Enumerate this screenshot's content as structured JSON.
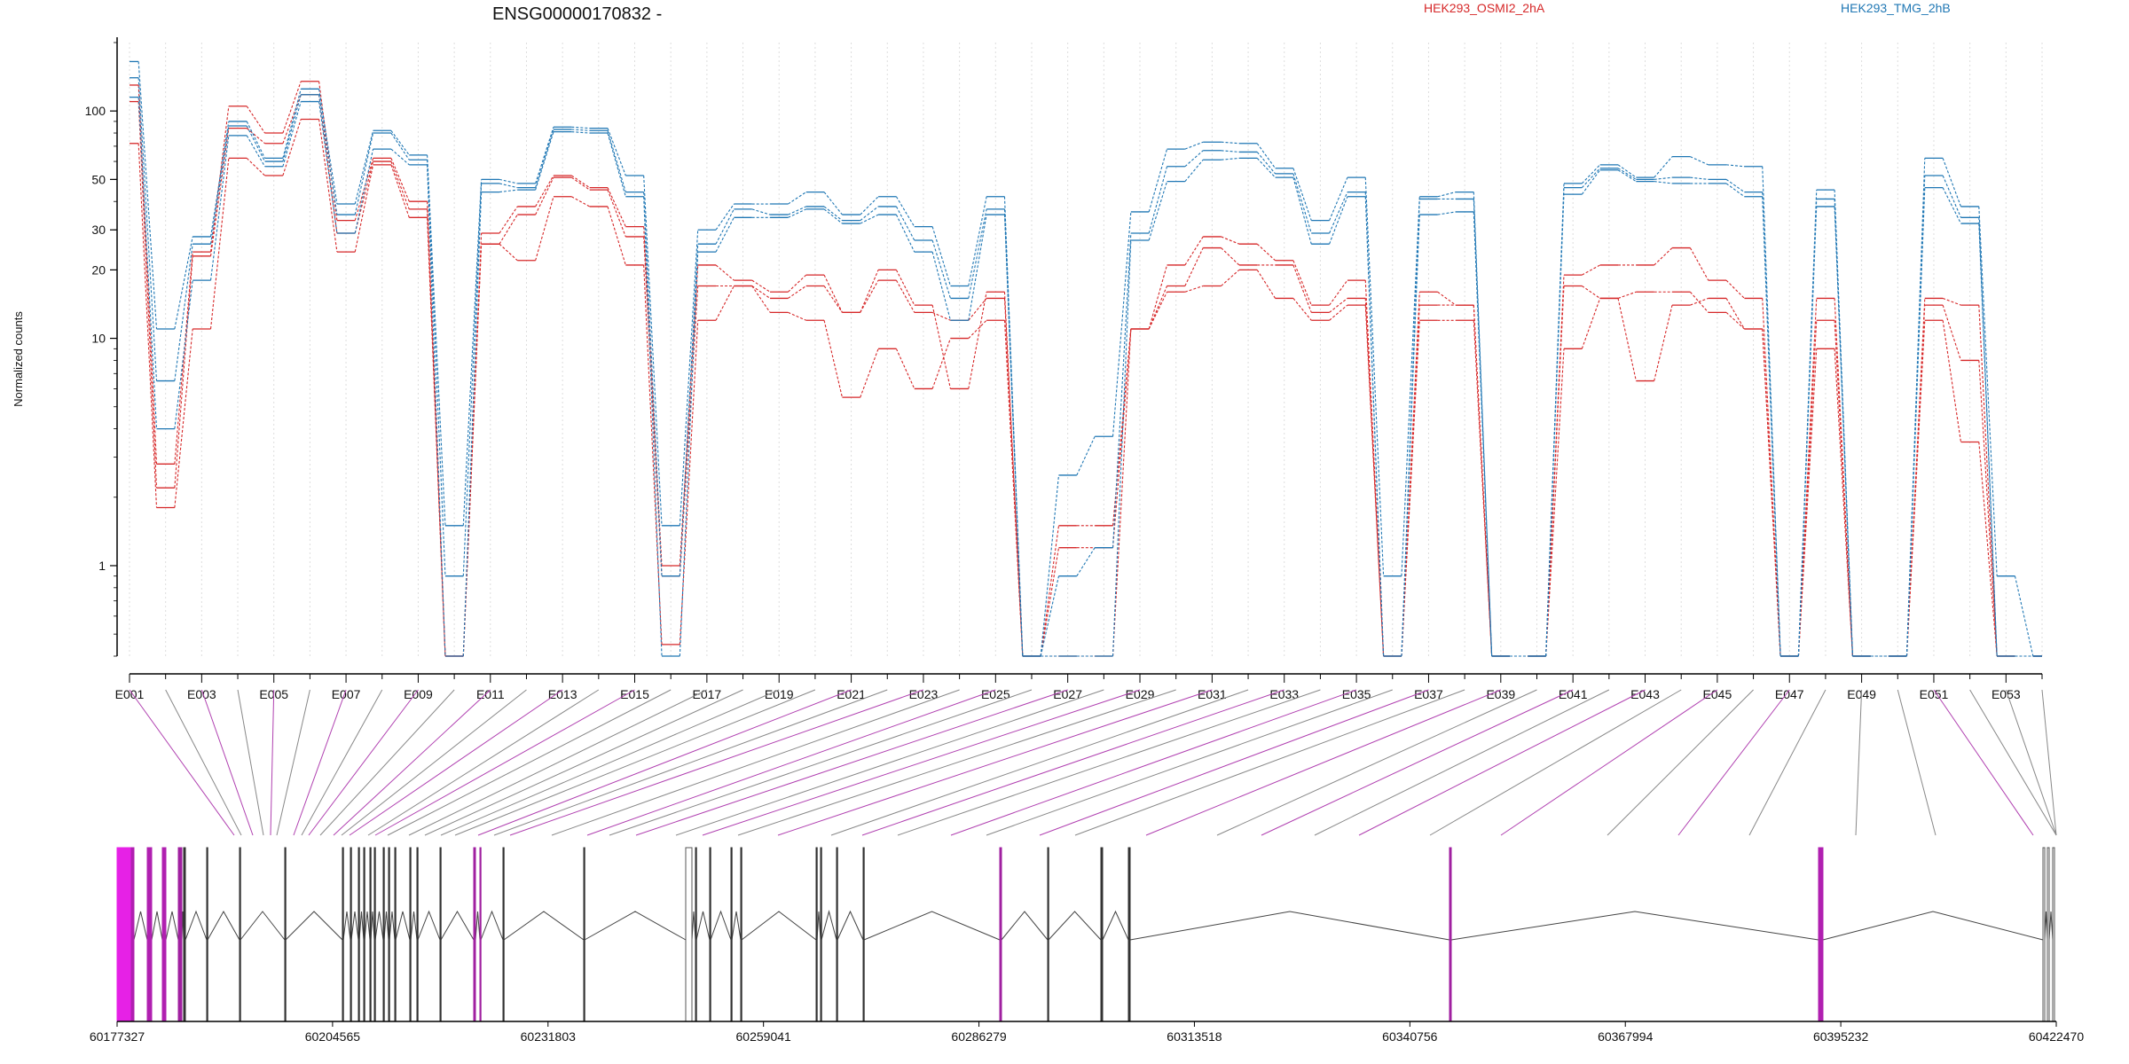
{
  "chart_data": {
    "type": "line",
    "title": "ENSG00000170832 -",
    "xlabel": "",
    "ylabel": "Normalized counts",
    "y_scale": "log",
    "ylim": [
      0.4,
      200
    ],
    "y_ticks": [
      1,
      10,
      20,
      30,
      50,
      100
    ],
    "y_tick_labels": [
      "1",
      "10",
      "20",
      "30",
      "50",
      "100"
    ],
    "legend_placement": "top",
    "grid": "vertical-dotted",
    "colors": {
      "HEK293_OSMI2_2hA": "#d62728",
      "HEK293_TMG_2hB": "#1f77b4"
    },
    "exons": [
      "E001",
      "E002",
      "E003",
      "E004",
      "E005",
      "E006",
      "E007",
      "E008",
      "E009",
      "E010",
      "E011",
      "E012",
      "E013",
      "E014",
      "E015",
      "E016",
      "E017",
      "E018",
      "E019",
      "E020",
      "E021",
      "E022",
      "E023",
      "E024",
      "E025",
      "E026",
      "E027",
      "E028",
      "E029",
      "E030",
      "E031",
      "E032",
      "E033",
      "E034",
      "E035",
      "E036",
      "E037",
      "E038",
      "E039",
      "E040",
      "E041",
      "E042",
      "E043",
      "E044",
      "E045",
      "E046",
      "E047",
      "E048",
      "E049",
      "E050",
      "E051",
      "E052",
      "E053",
      "E054"
    ],
    "exon_tick_labels": [
      "E001",
      "E003",
      "E005",
      "E007",
      "E009",
      "E011",
      "E013",
      "E015",
      "E017",
      "E019",
      "E021",
      "E023",
      "E025",
      "E027",
      "E029",
      "E031",
      "E033",
      "E035",
      "E037",
      "E039",
      "E041",
      "E043",
      "E045",
      "E047",
      "E049",
      "E051",
      "E053"
    ],
    "series": [
      {
        "name": "HEK293_OSMI2_2hA",
        "values": [
          130,
          2.8,
          24,
          105,
          80,
          135,
          33,
          62,
          40,
          0.4,
          29,
          38,
          52,
          46,
          31,
          1.0,
          21,
          18,
          16,
          19,
          13,
          20,
          14,
          6,
          16,
          0.4,
          1.5,
          1.5,
          11,
          21,
          28,
          26,
          22,
          14,
          18,
          0.4,
          16,
          14,
          0.4,
          0.4,
          19,
          21,
          21,
          25,
          18,
          15,
          0.4,
          15,
          0.4,
          0.4,
          15,
          14,
          0.4,
          0.4
        ]
      },
      {
        "name": "HEK293_OSMI2_2hA",
        "values": [
          110,
          2.2,
          23,
          84,
          72,
          118,
          29,
          60,
          37,
          0.4,
          26,
          35,
          51,
          45,
          28,
          0.9,
          17,
          17,
          15,
          17,
          13,
          18,
          13,
          12,
          15,
          0.4,
          1.2,
          1.2,
          11,
          17,
          25,
          21,
          21,
          13,
          15,
          0.4,
          14,
          14,
          0.4,
          0.4,
          17,
          15,
          16,
          16,
          13,
          11,
          0.4,
          9,
          0.4,
          0.4,
          14,
          8,
          0.4,
          0.4
        ]
      },
      {
        "name": "HEK293_OSMI2_2hA",
        "values": [
          72,
          1.8,
          11,
          62,
          52,
          92,
          24,
          58,
          34,
          0.4,
          26,
          22,
          42,
          38,
          21,
          0.45,
          12,
          17,
          13,
          12,
          5.5,
          9,
          6,
          10,
          12,
          0.4,
          0.4,
          0.4,
          11,
          16,
          17,
          20,
          15,
          12,
          14,
          0.4,
          12,
          12,
          0.4,
          0.4,
          9,
          15,
          6.5,
          14,
          15,
          11,
          0.4,
          12,
          0.4,
          0.4,
          12,
          3.5,
          0.4,
          0.4
        ]
      },
      {
        "name": "HEK293_TMG_2hB",
        "values": [
          165,
          11,
          28,
          90,
          62,
          125,
          39,
          82,
          64,
          1.5,
          50,
          48,
          85,
          84,
          52,
          1.5,
          30,
          39,
          39,
          44,
          35,
          42,
          31,
          17,
          42,
          0.4,
          2.5,
          3.7,
          36,
          68,
          73,
          72,
          56,
          33,
          51,
          0.9,
          42,
          44,
          0.4,
          0.4,
          48,
          58,
          51,
          63,
          58,
          57,
          0.4,
          45,
          0.4,
          0.4,
          62,
          38,
          0.9,
          0.4
        ]
      },
      {
        "name": "HEK293_TMG_2hB",
        "values": [
          140,
          6.5,
          26,
          86,
          60,
          118,
          35,
          80,
          61,
          0.9,
          48,
          46,
          83,
          82,
          44,
          0.9,
          26,
          37,
          35,
          38,
          33,
          38,
          27,
          15,
          37,
          0.4,
          0.9,
          1.2,
          29,
          57,
          67,
          66,
          53,
          29,
          44,
          0.4,
          41,
          41,
          0.4,
          0.4,
          46,
          56,
          50,
          51,
          50,
          44,
          0.4,
          41,
          0.4,
          0.4,
          52,
          34,
          0.4,
          0.4
        ]
      },
      {
        "name": "HEK293_TMG_2hB",
        "values": [
          115,
          4,
          18,
          78,
          57,
          110,
          29,
          68,
          58,
          0.4,
          44,
          45,
          81,
          80,
          42,
          0.4,
          24,
          34,
          34,
          37,
          32,
          35,
          24,
          12,
          35,
          0.4,
          0.4,
          0.4,
          27,
          49,
          61,
          62,
          51,
          26,
          42,
          0.4,
          35,
          36,
          0.4,
          0.4,
          43,
          55,
          49,
          48,
          48,
          42,
          0.4,
          38,
          0.4,
          0.4,
          46,
          32,
          0.4,
          0.4
        ]
      }
    ],
    "genome_axis_ticks": [
      "60177327",
      "60204565",
      "60231803",
      "60259041",
      "60286279",
      "60313518",
      "60340756",
      "60367994",
      "60395232",
      "60422470"
    ]
  }
}
